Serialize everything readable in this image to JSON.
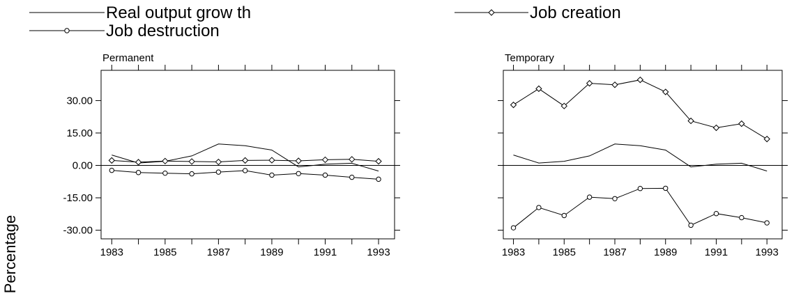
{
  "chart_data": [
    {
      "type": "line",
      "title": "Permanent",
      "ylabel": "Percentage",
      "ylim": [
        -34,
        44
      ],
      "xlim": [
        1982.6,
        1993.6
      ],
      "x": [
        1983,
        1984,
        1985,
        1986,
        1987,
        1988,
        1989,
        1990,
        1991,
        1992,
        1993
      ],
      "xticks": [
        1983,
        1984,
        1985,
        1986,
        1987,
        1988,
        1989,
        1990,
        1991,
        1992,
        1993
      ],
      "xtick_labels": [
        "1983",
        "1985",
        "1987",
        "1989",
        "1991",
        "1993"
      ],
      "xtick_label_values": [
        1983,
        1985,
        1987,
        1989,
        1991,
        1993
      ],
      "yticks": [
        30,
        15,
        0,
        -15,
        -30
      ],
      "ytick_labels": [
        "30.00",
        "15.00",
        "0.00",
        "-15.00",
        "-30.00"
      ],
      "grid": false,
      "zero_line": true,
      "series": [
        {
          "name": "Real output growth",
          "marker": "none",
          "values": [
            4.8,
            1.1,
            1.9,
            4.4,
            9.9,
            9.1,
            7.1,
            -0.7,
            0.6,
            1.0,
            -2.6
          ]
        },
        {
          "name": "Job creation",
          "marker": "diamond",
          "values": [
            2.3,
            1.5,
            2.0,
            1.8,
            1.6,
            2.3,
            2.4,
            2.1,
            2.6,
            2.8,
            1.9
          ]
        },
        {
          "name": "Job destruction",
          "marker": "circle",
          "values": [
            -2.3,
            -3.3,
            -3.6,
            -3.9,
            -3.1,
            -2.4,
            -4.5,
            -3.8,
            -4.5,
            -5.5,
            -6.4
          ]
        }
      ]
    },
    {
      "type": "line",
      "title": "Temporary",
      "ylim": [
        -34,
        44
      ],
      "xlim": [
        1982.6,
        1993.6
      ],
      "x": [
        1983,
        1984,
        1985,
        1986,
        1987,
        1988,
        1989,
        1990,
        1991,
        1992,
        1993
      ],
      "xticks": [
        1983,
        1984,
        1985,
        1986,
        1987,
        1988,
        1989,
        1990,
        1991,
        1992,
        1993
      ],
      "xtick_labels": [
        "1983",
        "1985",
        "1987",
        "1989",
        "1991",
        "1993"
      ],
      "xtick_label_values": [
        1983,
        1985,
        1987,
        1989,
        1991,
        1993
      ],
      "yticks": [
        30,
        15,
        0,
        -15,
        -30
      ],
      "grid": false,
      "zero_line": true,
      "series": [
        {
          "name": "Real output growth",
          "marker": "none",
          "values": [
            4.8,
            1.1,
            1.9,
            4.4,
            9.9,
            9.1,
            7.1,
            -0.7,
            0.6,
            1.0,
            -2.6
          ]
        },
        {
          "name": "Job creation",
          "marker": "diamond",
          "values": [
            28.0,
            35.5,
            27.5,
            38.0,
            37.3,
            39.6,
            34.0,
            20.6,
            17.4,
            19.3,
            12.2
          ]
        },
        {
          "name": "Job destruction",
          "marker": "circle",
          "values": [
            -28.9,
            -19.5,
            -23.2,
            -14.7,
            -15.4,
            -10.7,
            -10.6,
            -27.7,
            -22.3,
            -24.2,
            -26.6
          ]
        }
      ]
    }
  ],
  "legend": {
    "placement": "top",
    "entries": [
      {
        "label": "Real output grow th",
        "marker": "none"
      },
      {
        "label": "Job creation",
        "marker": "diamond"
      },
      {
        "label": "Job destruction",
        "marker": "circle"
      }
    ]
  }
}
